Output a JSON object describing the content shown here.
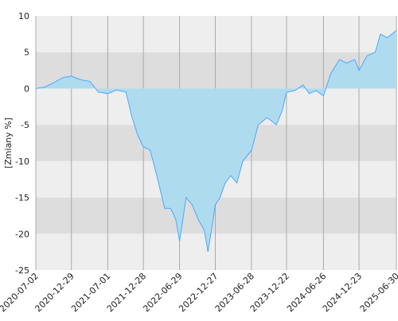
{
  "chart_data": {
    "type": "area",
    "y_label": "[Zmiany %]",
    "x": [
      "2020-07-02",
      "2020-08-15",
      "2020-10-01",
      "2020-11-15",
      "2020-12-29",
      "2021-02-15",
      "2021-04-01",
      "2021-05-15",
      "2021-07-01",
      "2021-08-15",
      "2021-10-01",
      "2021-11-01",
      "2021-12-01",
      "2021-12-28",
      "2022-02-01",
      "2022-03-15",
      "2022-04-15",
      "2022-05-15",
      "2022-06-10",
      "2022-06-29",
      "2022-08-01",
      "2022-09-01",
      "2022-10-01",
      "2022-11-01",
      "2022-11-20",
      "2022-12-27",
      "2023-01-20",
      "2023-02-15",
      "2023-03-15",
      "2023-04-15",
      "2023-05-15",
      "2023-06-28",
      "2023-08-01",
      "2023-09-15",
      "2023-11-01",
      "2023-12-01",
      "2023-12-22",
      "2024-02-01",
      "2024-03-15",
      "2024-04-15",
      "2024-05-20",
      "2024-06-26",
      "2024-08-01",
      "2024-09-15",
      "2024-10-20",
      "2024-12-01",
      "2024-12-23",
      "2025-02-01",
      "2025-03-15",
      "2025-04-10",
      "2025-05-15",
      "2025-06-30"
    ],
    "series": [
      {
        "color": "#4da6ff",
        "fill": "#aedcee",
        "values": [
          0,
          0.2,
          0.8,
          1.5,
          1.7,
          1.2,
          1.0,
          -0.5,
          -0.7,
          -0.2,
          -0.5,
          -4,
          -6.5,
          -8,
          -8.5,
          -13,
          -16.5,
          -16.5,
          -18,
          -21,
          -15,
          -16,
          -18,
          -19.5,
          -22.5,
          -16,
          -15,
          -13,
          -12,
          -13,
          -10,
          -8.5,
          -5,
          -4,
          -5,
          -3,
          -0.5,
          -0.3,
          0.5,
          -0.7,
          -0.3,
          -1,
          2,
          4,
          3.5,
          4,
          2.5,
          4.5,
          5,
          7.5,
          7,
          8
        ]
      }
    ],
    "xlim": [
      "2020-07-02",
      "2025-06-30"
    ],
    "xticks": [
      "2020-07-02",
      "2020-12-29",
      "2021-07-01",
      "2021-12-28",
      "2022-06-29",
      "2022-12-27",
      "2023-06-28",
      "2023-12-22",
      "2024-06-26",
      "2024-12-23",
      "2025-06-30"
    ],
    "ylim": [
      -25,
      10
    ],
    "yticks": [
      10,
      5,
      0,
      -5,
      -10,
      -15,
      -20,
      -25
    ],
    "grid": true,
    "band_colors": [
      "#eeeeee",
      "#dddddd"
    ]
  }
}
